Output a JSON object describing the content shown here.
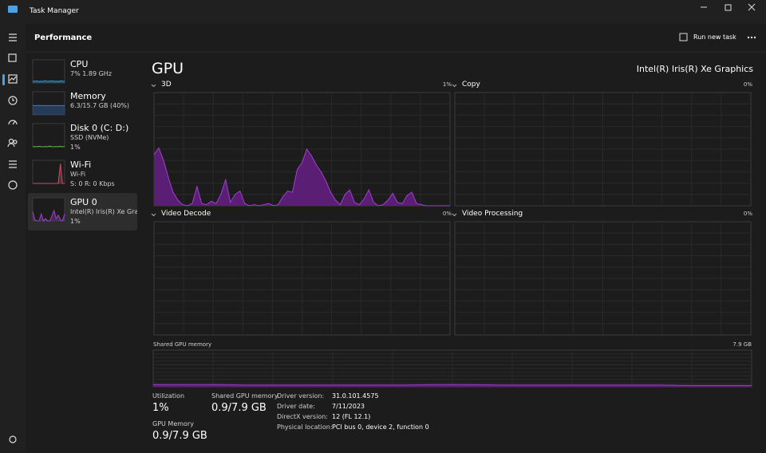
{
  "window": {
    "title": "Task Manager"
  },
  "header": {
    "title": "Performance",
    "run_new_task": "Run new task"
  },
  "sidebar": [
    {
      "name": "CPU",
      "lines": [
        "7%  1.89 GHz"
      ],
      "color": "#2f9bd8",
      "ylim": [
        0,
        100
      ],
      "values": [
        8,
        7,
        9,
        6,
        8,
        7,
        10,
        7,
        8,
        9,
        7,
        8,
        6,
        9,
        8,
        7
      ]
    },
    {
      "name": "Memory",
      "lines": [
        "6.3/15.7 GB (40%)"
      ],
      "color": "#3c7bd0",
      "ylim": [
        0,
        100
      ],
      "values": [
        40,
        40,
        40,
        41,
        40,
        40,
        40,
        40,
        40,
        40,
        40,
        40,
        40,
        40,
        40,
        40
      ]
    },
    {
      "name": "Disk 0 (C: D:)",
      "lines": [
        "SSD (NVMe)",
        "1%"
      ],
      "color": "#5cb84a",
      "ylim": [
        0,
        100
      ],
      "values": [
        0,
        1,
        0,
        2,
        0,
        0,
        1,
        0,
        3,
        0,
        0,
        1,
        0,
        2,
        0,
        1
      ]
    },
    {
      "name": "Wi-Fi",
      "lines": [
        "Wi-Fi",
        "S: 0  R: 0 Kbps"
      ],
      "color": "#c8506a",
      "ylim": [
        0,
        100
      ],
      "values": [
        0,
        0,
        0,
        0,
        0,
        0,
        0,
        0,
        0,
        0,
        0,
        0,
        0,
        85,
        0,
        0
      ]
    },
    {
      "name": "GPU 0",
      "lines": [
        "Intel(R) Iris(R) Xe Graphi",
        "1%"
      ],
      "color": "#a040d0",
      "ylim": [
        0,
        100
      ],
      "values": [
        40,
        5,
        0,
        0,
        30,
        0,
        10,
        0,
        0,
        20,
        45,
        10,
        25,
        5,
        0,
        30
      ]
    }
  ],
  "main": {
    "title": "GPU",
    "adapter": "Intel(R) Iris(R) Xe Graphics",
    "engines": [
      {
        "name": "3D",
        "value_label": "1%",
        "ylim": [
          0,
          100
        ],
        "values": [
          45,
          51,
          40,
          25,
          12,
          5,
          1,
          0,
          2,
          17,
          2,
          1,
          4,
          2,
          10,
          23,
          3,
          10,
          13,
          2,
          0,
          1,
          0,
          1,
          2,
          0,
          1,
          8,
          13,
          12,
          32,
          38,
          50,
          44,
          36,
          30,
          22,
          12,
          5,
          1,
          10,
          14,
          3,
          1,
          6,
          14,
          3,
          0,
          1,
          5,
          11,
          3,
          2,
          9,
          12,
          2,
          1,
          0,
          0,
          0,
          0,
          0,
          0
        ]
      },
      {
        "name": "Copy",
        "value_label": "0%"
      },
      {
        "name": "Video Decode",
        "value_label": "0%"
      },
      {
        "name": "Video Processing",
        "value_label": "0%"
      }
    ],
    "shared_memory": {
      "label": "Shared GPU memory",
      "max_label": "7.9 GB",
      "ylim": [
        0,
        100
      ],
      "values": [
        6,
        6,
        6,
        5,
        5,
        5,
        5,
        5,
        5,
        6,
        6,
        5,
        5,
        5,
        5,
        5,
        5,
        4,
        4,
        4
      ]
    },
    "stats": [
      {
        "label": "Utilization",
        "value": "1%"
      },
      {
        "label": "Shared GPU memory",
        "value": "0.9/7.9 GB"
      },
      {
        "label": "GPU Memory",
        "value": "0.9/7.9 GB"
      }
    ],
    "details": [
      {
        "label": "Driver version:",
        "value": "31.0.101.4575"
      },
      {
        "label": "Driver date:",
        "value": "7/11/2023"
      },
      {
        "label": "DirectX version:",
        "value": "12 (FL 12.1)"
      },
      {
        "label": "Physical location:",
        "value": "PCI bus 0, device 2, function 0"
      }
    ]
  }
}
